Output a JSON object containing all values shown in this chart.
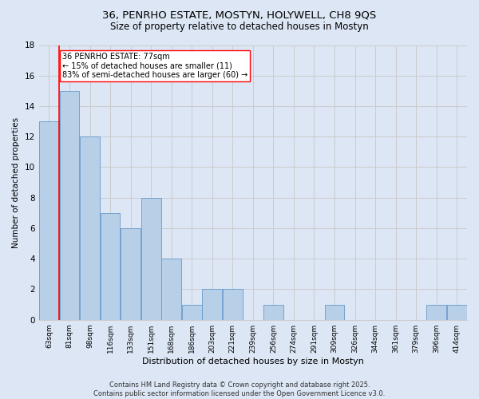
{
  "title1": "36, PENRHO ESTATE, MOSTYN, HOLYWELL, CH8 9QS",
  "title2": "Size of property relative to detached houses in Mostyn",
  "xlabel": "Distribution of detached houses by size in Mostyn",
  "ylabel": "Number of detached properties",
  "categories": [
    "63sqm",
    "81sqm",
    "98sqm",
    "116sqm",
    "133sqm",
    "151sqm",
    "168sqm",
    "186sqm",
    "203sqm",
    "221sqm",
    "239sqm",
    "256sqm",
    "274sqm",
    "291sqm",
    "309sqm",
    "326sqm",
    "344sqm",
    "361sqm",
    "379sqm",
    "396sqm",
    "414sqm"
  ],
  "values": [
    13,
    15,
    12,
    7,
    6,
    8,
    4,
    1,
    2,
    2,
    0,
    1,
    0,
    0,
    1,
    0,
    0,
    0,
    0,
    1,
    1
  ],
  "bar_color": "#b8cfe8",
  "bar_edge_color": "#6699cc",
  "annotation_text": "36 PENRHO ESTATE: 77sqm\n← 15% of detached houses are smaller (11)\n83% of semi-detached houses are larger (60) →",
  "vline_x": 0.5,
  "vline_color": "red",
  "annotation_box_color": "white",
  "annotation_box_edge": "red",
  "ylim": [
    0,
    18
  ],
  "yticks": [
    0,
    2,
    4,
    6,
    8,
    10,
    12,
    14,
    16,
    18
  ],
  "grid_color": "#cccccc",
  "bg_color": "#dce6f5",
  "footer": "Contains HM Land Registry data © Crown copyright and database right 2025.\nContains public sector information licensed under the Open Government Licence v3.0."
}
